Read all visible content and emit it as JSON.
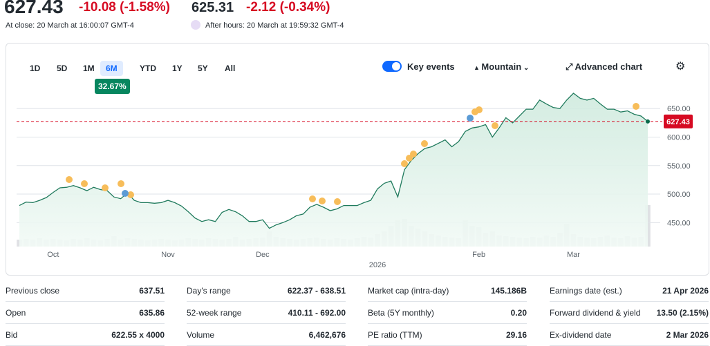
{
  "header": {
    "price": "627.43",
    "change": "-10.08 (-1.58%)",
    "after_price": "625.31",
    "after_change": "-2.12 (-0.34%)",
    "close_time": "At close: 20 March at 16:00:07 GMT-4",
    "after_time": "After hours: 20 March at 19:59:32 GMT-4"
  },
  "toolbar": {
    "ranges": [
      "1D",
      "5D",
      "1M",
      "6M",
      "YTD",
      "1Y",
      "5Y",
      "All"
    ],
    "selected": "6M",
    "selected_change": "32.67%",
    "key_events": "Key events",
    "chart_type": "Mountain",
    "advanced": "Advanced chart"
  },
  "chart_data": {
    "type": "area",
    "color": "#1f7a5c",
    "categories": [
      null,
      null,
      null,
      null,
      null,
      "Oct",
      null,
      null,
      null,
      null,
      null,
      null,
      null,
      null,
      null,
      null,
      null,
      null,
      null,
      null,
      null,
      null,
      "Nov",
      null,
      null,
      null,
      null,
      null,
      null,
      null,
      null,
      null,
      null,
      null,
      null,
      null,
      "Dec",
      null,
      null,
      null,
      null,
      null,
      null,
      null,
      null,
      null,
      null,
      null,
      null,
      null,
      null,
      null,
      null,
      "2026",
      null,
      null,
      null,
      null,
      null,
      null,
      null,
      null,
      null,
      null,
      null,
      null,
      null,
      null,
      "Feb",
      null,
      null,
      null,
      null,
      null,
      null,
      null,
      null,
      null,
      null,
      null,
      null,
      null,
      "Mar",
      null,
      null,
      null,
      null,
      null,
      null,
      null,
      null,
      null,
      null,
      null
    ],
    "values": [
      480,
      486,
      485,
      489,
      494,
      503,
      511,
      512,
      515,
      511,
      506,
      512,
      508,
      506,
      495,
      492,
      502,
      489,
      485,
      485,
      484,
      485,
      489,
      485,
      479,
      469,
      458,
      452,
      455,
      452,
      468,
      473,
      469,
      462,
      452,
      452,
      455,
      440,
      446,
      450,
      455,
      462,
      465,
      477,
      482,
      477,
      471,
      474,
      480,
      480,
      480,
      485,
      489,
      509,
      519,
      523,
      495,
      543,
      559,
      571,
      580,
      583,
      589,
      595,
      583,
      592,
      610,
      616,
      618,
      622,
      600,
      616,
      634,
      625,
      637,
      649,
      649,
      665,
      658,
      652,
      650,
      665,
      677,
      668,
      665,
      668,
      658,
      649,
      649,
      644,
      646,
      640,
      637,
      627.43
    ],
    "volume": [
      10,
      11,
      10,
      12,
      10,
      11,
      10,
      9,
      11,
      10,
      12,
      10,
      9,
      11,
      15,
      10,
      12,
      11,
      10,
      9,
      10,
      11,
      10,
      9,
      10,
      12,
      11,
      10,
      12,
      11,
      10,
      11,
      14,
      10,
      11,
      12,
      13,
      22,
      14,
      12,
      11,
      10,
      11,
      12,
      13,
      11,
      10,
      12,
      11,
      10,
      12,
      14,
      13,
      18,
      22,
      30,
      38,
      40,
      30,
      26,
      22,
      18,
      16,
      14,
      13,
      12,
      38,
      30,
      28,
      20,
      22,
      16,
      15,
      14,
      13,
      12,
      14,
      13,
      16,
      14,
      20,
      33,
      18,
      14,
      13,
      12,
      14,
      16,
      13,
      12,
      15,
      13,
      14,
      60
    ],
    "volume_lim": [
      0,
      100
    ],
    "ylim": [
      408,
      683
    ],
    "yticks": [
      {
        "value": 450,
        "label": "450.00"
      },
      {
        "value": 500,
        "label": "500.00"
      },
      {
        "value": 550,
        "label": "550.00"
      },
      {
        "value": 600,
        "label": "600.00"
      },
      {
        "value": 650,
        "label": "650.00"
      }
    ],
    "last_price": 627.43,
    "grid": true
  },
  "stats": {
    "columns": [
      {
        "rows": [
          [
            "Previous close",
            "637.51"
          ],
          [
            "Open",
            "635.86"
          ],
          [
            "Bid",
            "622.55 x 4000"
          ]
        ]
      },
      {
        "rows": [
          [
            "Day's range",
            "622.37 - 638.51"
          ],
          [
            "52-week range",
            "410.11 - 692.00"
          ],
          [
            "Volume",
            "6,462,676"
          ]
        ]
      },
      {
        "rows": [
          [
            "Market cap (intra-day)",
            "145.186B"
          ],
          [
            "Beta (5Y monthly)",
            "0.20"
          ],
          [
            "PE ratio (TTM)",
            "29.16"
          ]
        ]
      },
      {
        "rows": [
          [
            "Earnings date (est.)",
            "21 Apr 2026"
          ],
          [
            "Forward dividend & yield",
            "13.50 (2.15%)"
          ],
          [
            "Ex-dividend date",
            "2 Mar 2026"
          ]
        ]
      }
    ]
  }
}
